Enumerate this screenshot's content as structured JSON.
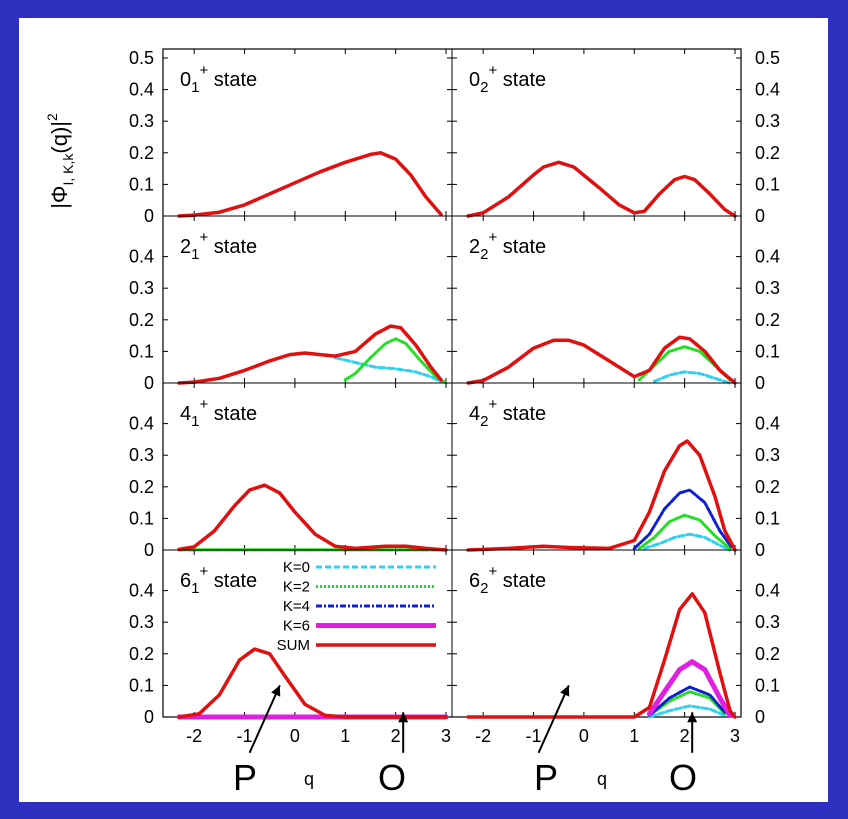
{
  "background": "#2f2fc0",
  "y_axis_label_main": "|Φ",
  "y_axis_label_sub": "I, K,k",
  "y_axis_label_tail": "(q)|",
  "y_axis_label_sup": "2",
  "x_axis_label": "q",
  "markers": {
    "left": "P",
    "right": "O"
  },
  "chart_data": {
    "type": "line",
    "xlim": [
      -2.5,
      3
    ],
    "ylim": [
      0,
      0.5
    ],
    "x_ticks": [
      "-2",
      "-1",
      "0",
      "1",
      "2",
      "3"
    ],
    "y_ticks": [
      "0",
      "0.1",
      "0.2",
      "0.3",
      "0.4",
      "0.5"
    ],
    "y_ticks_inner": [
      "0",
      "0.1",
      "0.2",
      "0.3",
      "0.4"
    ],
    "legend": {
      "panel": 6,
      "entries": [
        {
          "label": "K=0",
          "color": "#30d0f0",
          "style": "dash"
        },
        {
          "label": "K=2",
          "color": "#20e020",
          "style": "dot"
        },
        {
          "label": "K=4",
          "color": "#1020d0",
          "style": "dashdot"
        },
        {
          "label": "K=6",
          "color": "#e020e0",
          "style": "thick"
        },
        {
          "label": "SUM",
          "color": "#e01010",
          "style": "solid"
        }
      ]
    },
    "panels": [
      {
        "state": "0",
        "sub": "1",
        "sup": "+",
        "suffix": " state",
        "series": [
          {
            "name": "SUM",
            "points": [
              [
                -2.3,
                0
              ],
              [
                -2,
                0.003
              ],
              [
                -1.5,
                0.012
              ],
              [
                -1,
                0.035
              ],
              [
                -0.5,
                0.07
              ],
              [
                0,
                0.105
              ],
              [
                0.5,
                0.14
              ],
              [
                1,
                0.17
              ],
              [
                1.5,
                0.195
              ],
              [
                1.7,
                0.2
              ],
              [
                2,
                0.18
              ],
              [
                2.3,
                0.13
              ],
              [
                2.6,
                0.06
              ],
              [
                2.9,
                0.005
              ]
            ]
          }
        ]
      },
      {
        "state": "0",
        "sub": "2",
        "sup": "+",
        "suffix": " state",
        "series": [
          {
            "name": "SUM",
            "points": [
              [
                -2.3,
                0
              ],
              [
                -2,
                0.01
              ],
              [
                -1.5,
                0.06
              ],
              [
                -1,
                0.13
              ],
              [
                -0.8,
                0.155
              ],
              [
                -0.5,
                0.17
              ],
              [
                -0.2,
                0.155
              ],
              [
                0.3,
                0.09
              ],
              [
                0.7,
                0.035
              ],
              [
                1,
                0.01
              ],
              [
                1.2,
                0.015
              ],
              [
                1.5,
                0.07
              ],
              [
                1.8,
                0.115
              ],
              [
                2,
                0.125
              ],
              [
                2.2,
                0.115
              ],
              [
                2.5,
                0.07
              ],
              [
                2.8,
                0.02
              ],
              [
                3,
                0
              ]
            ]
          }
        ]
      },
      {
        "state": "2",
        "sub": "1",
        "sup": "+",
        "suffix": " state",
        "series": [
          {
            "name": "K=0",
            "points": [
              [
                0.8,
                0.08
              ],
              [
                1.2,
                0.065
              ],
              [
                1.6,
                0.05
              ],
              [
                2,
                0.045
              ],
              [
                2.4,
                0.035
              ],
              [
                2.7,
                0.02
              ],
              [
                2.9,
                0.005
              ]
            ]
          },
          {
            "name": "K=2",
            "points": [
              [
                1,
                0.01
              ],
              [
                1.2,
                0.03
              ],
              [
                1.5,
                0.08
              ],
              [
                1.8,
                0.125
              ],
              [
                2,
                0.14
              ],
              [
                2.2,
                0.125
              ],
              [
                2.5,
                0.07
              ],
              [
                2.8,
                0.02
              ],
              [
                3,
                0
              ]
            ]
          },
          {
            "name": "SUM",
            "points": [
              [
                -2.3,
                0
              ],
              [
                -2,
                0.003
              ],
              [
                -1.5,
                0.015
              ],
              [
                -1,
                0.04
              ],
              [
                -0.5,
                0.07
              ],
              [
                -0.1,
                0.09
              ],
              [
                0.2,
                0.095
              ],
              [
                0.5,
                0.09
              ],
              [
                0.8,
                0.085
              ],
              [
                1.2,
                0.1
              ],
              [
                1.6,
                0.155
              ],
              [
                1.9,
                0.18
              ],
              [
                2.1,
                0.175
              ],
              [
                2.4,
                0.12
              ],
              [
                2.7,
                0.05
              ],
              [
                2.9,
                0.01
              ]
            ]
          }
        ]
      },
      {
        "state": "2",
        "sub": "2",
        "sup": "+",
        "suffix": " state",
        "series": [
          {
            "name": "K=0",
            "points": [
              [
                1.4,
                0.005
              ],
              [
                1.7,
                0.025
              ],
              [
                2,
                0.035
              ],
              [
                2.3,
                0.03
              ],
              [
                2.6,
                0.015
              ],
              [
                2.9,
                0
              ]
            ]
          },
          {
            "name": "K=2",
            "points": [
              [
                1.1,
                0.01
              ],
              [
                1.4,
                0.055
              ],
              [
                1.7,
                0.1
              ],
              [
                2,
                0.115
              ],
              [
                2.3,
                0.1
              ],
              [
                2.6,
                0.055
              ],
              [
                2.9,
                0.01
              ]
            ]
          },
          {
            "name": "SUM",
            "points": [
              [
                -2.3,
                0
              ],
              [
                -2,
                0.008
              ],
              [
                -1.5,
                0.05
              ],
              [
                -1,
                0.11
              ],
              [
                -0.6,
                0.135
              ],
              [
                -0.3,
                0.135
              ],
              [
                0,
                0.12
              ],
              [
                0.5,
                0.07
              ],
              [
                1,
                0.02
              ],
              [
                1.3,
                0.04
              ],
              [
                1.6,
                0.11
              ],
              [
                1.9,
                0.145
              ],
              [
                2.1,
                0.14
              ],
              [
                2.4,
                0.1
              ],
              [
                2.7,
                0.04
              ],
              [
                3,
                0
              ]
            ]
          }
        ]
      },
      {
        "state": "4",
        "sub": "1",
        "sup": "+",
        "suffix": " state",
        "series": [
          {
            "name": "K=0",
            "points": [
              [
                -2.3,
                0
              ],
              [
                3,
                0
              ]
            ]
          },
          {
            "name": "K=2",
            "points": [
              [
                -2.3,
                0.001
              ],
              [
                3,
                0.001
              ]
            ]
          },
          {
            "name": "SUM",
            "points": [
              [
                -2.3,
                0.002
              ],
              [
                -2,
                0.01
              ],
              [
                -1.6,
                0.06
              ],
              [
                -1.2,
                0.14
              ],
              [
                -0.9,
                0.19
              ],
              [
                -0.6,
                0.205
              ],
              [
                -0.3,
                0.18
              ],
              [
                0,
                0.12
              ],
              [
                0.4,
                0.05
              ],
              [
                0.8,
                0.012
              ],
              [
                1.2,
                0.005
              ],
              [
                1.8,
                0.012
              ],
              [
                2.2,
                0.012
              ],
              [
                2.6,
                0.005
              ],
              [
                3,
                0
              ]
            ]
          }
        ]
      },
      {
        "state": "4",
        "sub": "2",
        "sup": "+",
        "suffix": " state",
        "series": [
          {
            "name": "K=0",
            "points": [
              [
                1.2,
                0.005
              ],
              [
                1.5,
                0.02
              ],
              [
                1.8,
                0.04
              ],
              [
                2.1,
                0.05
              ],
              [
                2.4,
                0.04
              ],
              [
                2.7,
                0.015
              ],
              [
                2.9,
                0
              ]
            ]
          },
          {
            "name": "K=2",
            "points": [
              [
                1.1,
                0.005
              ],
              [
                1.4,
                0.04
              ],
              [
                1.7,
                0.09
              ],
              [
                2,
                0.11
              ],
              [
                2.3,
                0.095
              ],
              [
                2.6,
                0.045
              ],
              [
                2.9,
                0.005
              ]
            ]
          },
          {
            "name": "K=4",
            "points": [
              [
                1,
                0.005
              ],
              [
                1.3,
                0.05
              ],
              [
                1.6,
                0.13
              ],
              [
                1.9,
                0.18
              ],
              [
                2.1,
                0.19
              ],
              [
                2.4,
                0.15
              ],
              [
                2.7,
                0.06
              ],
              [
                2.95,
                0.005
              ]
            ]
          },
          {
            "name": "SUM",
            "points": [
              [
                -2.3,
                0
              ],
              [
                -1.5,
                0.005
              ],
              [
                -0.8,
                0.012
              ],
              [
                -0.3,
                0.008
              ],
              [
                0.5,
                0.005
              ],
              [
                1,
                0.03
              ],
              [
                1.3,
                0.12
              ],
              [
                1.6,
                0.25
              ],
              [
                1.9,
                0.33
              ],
              [
                2.05,
                0.345
              ],
              [
                2.3,
                0.3
              ],
              [
                2.6,
                0.17
              ],
              [
                2.8,
                0.06
              ],
              [
                3,
                0
              ]
            ]
          }
        ]
      },
      {
        "state": "6",
        "sub": "1",
        "sup": "+",
        "suffix": " state",
        "series": [
          {
            "name": "K=6",
            "points": [
              [
                -2.3,
                0
              ],
              [
                3,
                0
              ]
            ]
          },
          {
            "name": "SUM",
            "points": [
              [
                -2.3,
                0
              ],
              [
                -1.9,
                0.01
              ],
              [
                -1.5,
                0.07
              ],
              [
                -1.1,
                0.18
              ],
              [
                -0.8,
                0.215
              ],
              [
                -0.5,
                0.2
              ],
              [
                -0.2,
                0.13
              ],
              [
                0.2,
                0.04
              ],
              [
                0.6,
                0.005
              ],
              [
                1,
                0
              ],
              [
                3,
                0
              ]
            ]
          }
        ]
      },
      {
        "state": "6",
        "sub": "2",
        "sup": "+",
        "suffix": " state",
        "series": [
          {
            "name": "K=0",
            "points": [
              [
                1.3,
                0
              ],
              [
                1.7,
                0.02
              ],
              [
                2.1,
                0.035
              ],
              [
                2.5,
                0.025
              ],
              [
                2.8,
                0.005
              ]
            ]
          },
          {
            "name": "K=2",
            "points": [
              [
                1.3,
                0.005
              ],
              [
                1.7,
                0.05
              ],
              [
                2.1,
                0.08
              ],
              [
                2.5,
                0.06
              ],
              [
                2.8,
                0.01
              ]
            ]
          },
          {
            "name": "K=4",
            "points": [
              [
                1.3,
                0.005
              ],
              [
                1.7,
                0.06
              ],
              [
                2.1,
                0.095
              ],
              [
                2.5,
                0.07
              ],
              [
                2.8,
                0.015
              ]
            ]
          },
          {
            "name": "K=6",
            "points": [
              [
                1.3,
                0.01
              ],
              [
                1.6,
                0.08
              ],
              [
                1.9,
                0.15
              ],
              [
                2.15,
                0.175
              ],
              [
                2.4,
                0.15
              ],
              [
                2.7,
                0.06
              ],
              [
                2.9,
                0.005
              ]
            ]
          },
          {
            "name": "SUM",
            "points": [
              [
                -2.3,
                0
              ],
              [
                1,
                0
              ],
              [
                1.3,
                0.03
              ],
              [
                1.6,
                0.18
              ],
              [
                1.9,
                0.34
              ],
              [
                2.15,
                0.39
              ],
              [
                2.4,
                0.33
              ],
              [
                2.7,
                0.14
              ],
              [
                2.9,
                0.02
              ],
              [
                3,
                0
              ]
            ]
          }
        ]
      }
    ]
  }
}
